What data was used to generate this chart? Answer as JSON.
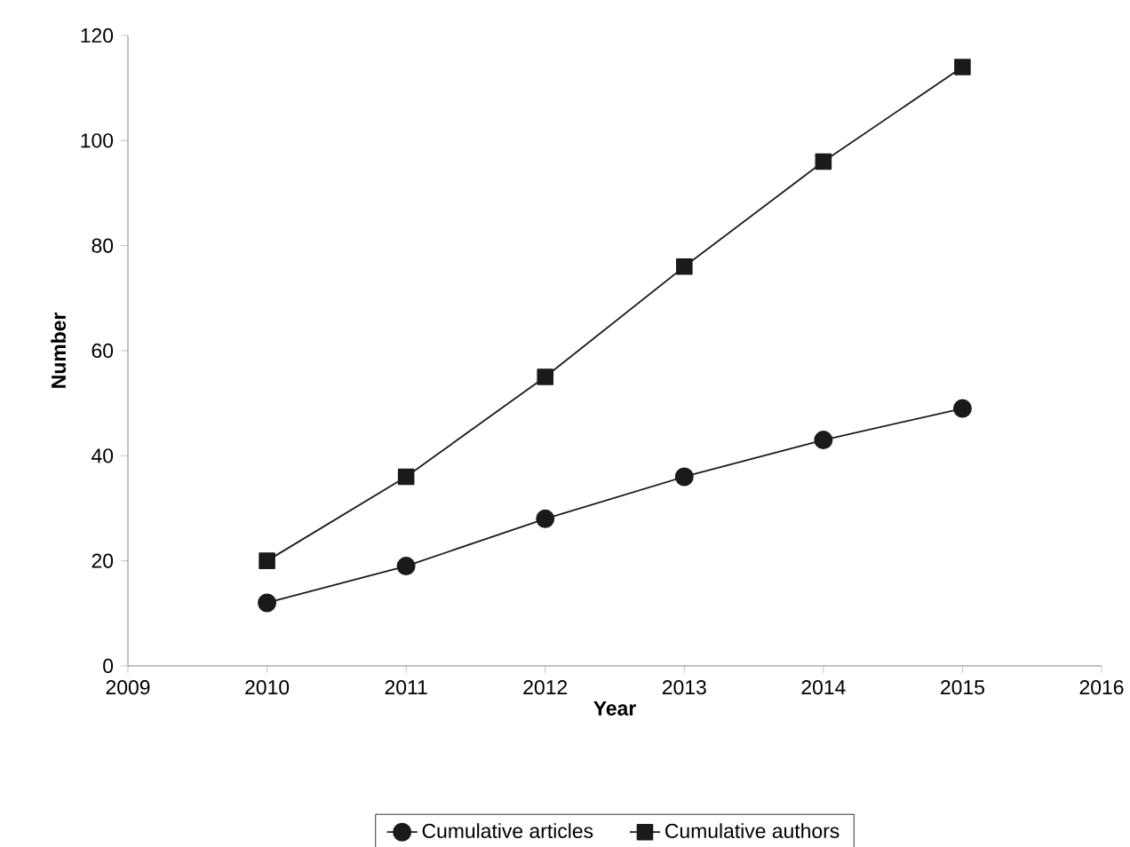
{
  "chart_data": {
    "type": "line",
    "xlabel": "Year",
    "ylabel": "Number",
    "x": [
      2010,
      2011,
      2012,
      2013,
      2014,
      2015
    ],
    "series": [
      {
        "name": "Cumulative articles",
        "color": "#1a1a1a",
        "marker": "circle",
        "values": [
          12,
          19,
          28,
          36,
          43,
          49
        ]
      },
      {
        "name": "Cumulative authors",
        "color": "#1a1a1a",
        "marker": "square",
        "values": [
          20,
          36,
          55,
          76,
          96,
          114
        ]
      }
    ],
    "xlim": [
      2009,
      2016
    ],
    "xticks": [
      2009,
      2010,
      2011,
      2012,
      2013,
      2014,
      2015,
      2016
    ],
    "ylim": [
      0,
      120
    ],
    "yticks": [
      0,
      20,
      40,
      60,
      80,
      100,
      120
    ],
    "grid": false,
    "legend": "bottom"
  }
}
